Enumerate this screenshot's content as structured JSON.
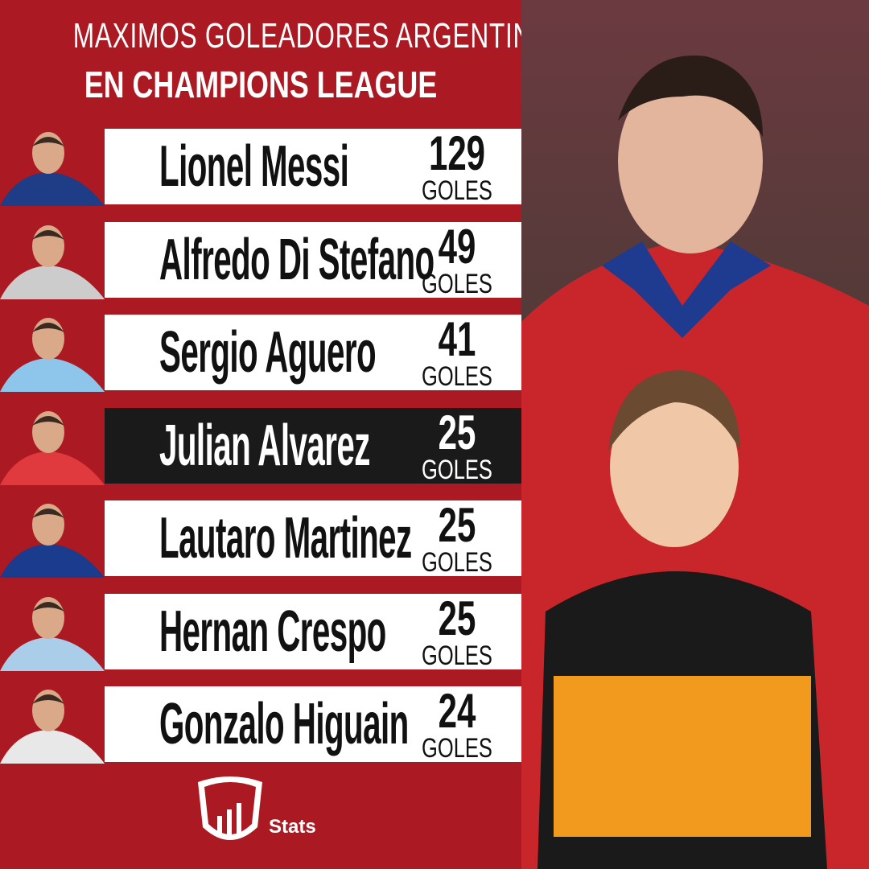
{
  "header": {
    "title_line1": "MAXIMOS GOLEADORES ARGENTINOS",
    "title_line2": "EN CHAMPIONS LEAGUE"
  },
  "players": [
    {
      "name": "Lionel Messi",
      "goals": 129,
      "unit": "GOLES"
    },
    {
      "name": "Alfredo Di Stefano",
      "goals": 49,
      "unit": "GOLES"
    },
    {
      "name": "Sergio Aguero",
      "goals": 41,
      "unit": "GOLES"
    },
    {
      "name": "Julian Alvarez",
      "goals": 25,
      "unit": "GOLES"
    },
    {
      "name": "Lautaro Martinez",
      "goals": 25,
      "unit": "GOLES"
    },
    {
      "name": "Hernan Crespo",
      "goals": 25,
      "unit": "GOLES"
    },
    {
      "name": "Gonzalo Higuain",
      "goals": 24,
      "unit": "GOLES"
    }
  ],
  "footer": {
    "brand": "Stats"
  }
}
